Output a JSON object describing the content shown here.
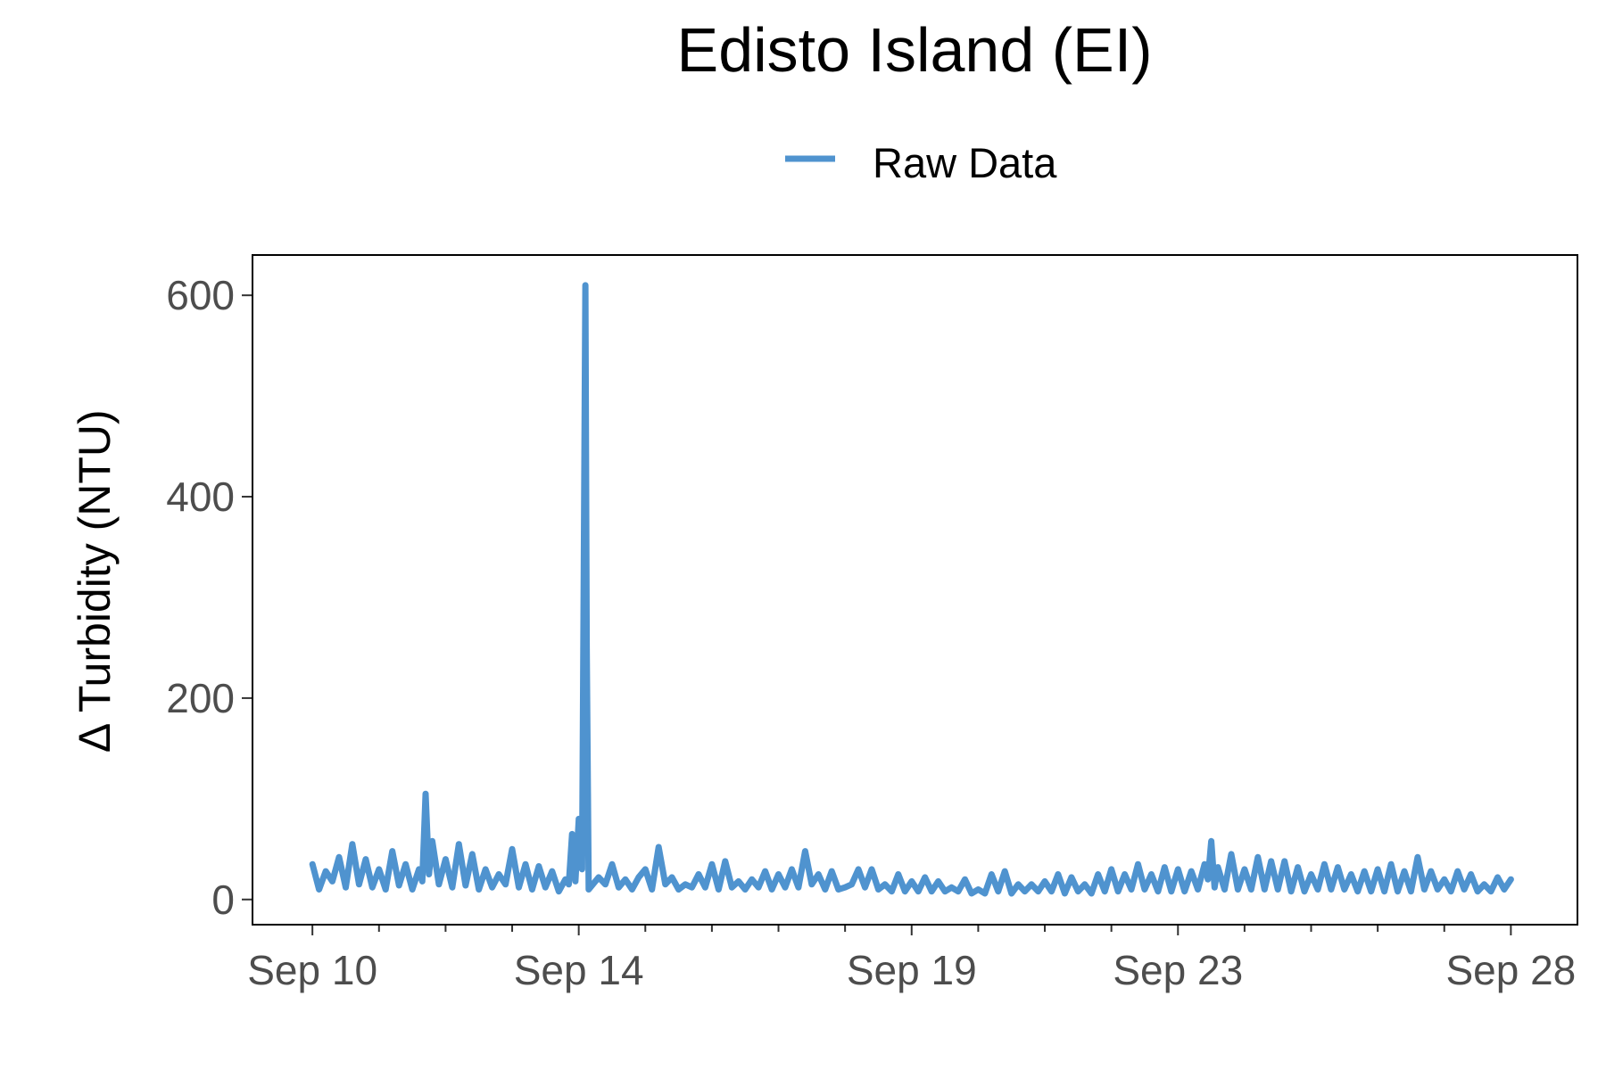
{
  "chart_data": {
    "type": "line",
    "title": "Edisto Island (EI)",
    "xlabel": "",
    "ylabel": "∆ Turbidity (NTU)",
    "legend": {
      "position": "top",
      "entries": [
        "Raw Data"
      ]
    },
    "grid": false,
    "x_range": [
      "2023-09-10",
      "2023-09-28"
    ],
    "xlim": [
      -0.9,
      19.0
    ],
    "ylim": [
      -25,
      640
    ],
    "x_major_ticks": [
      {
        "day": 0,
        "label": "Sep 10"
      },
      {
        "day": 4,
        "label": "Sep 14"
      },
      {
        "day": 9,
        "label": "Sep 19"
      },
      {
        "day": 13,
        "label": "Sep 23"
      },
      {
        "day": 18,
        "label": "Sep 28"
      }
    ],
    "x_minor_ticks": [
      1,
      2,
      3,
      5,
      6,
      7,
      8,
      10,
      11,
      12,
      14,
      15,
      16,
      17
    ],
    "y_ticks": [
      0,
      200,
      400,
      600
    ],
    "series": [
      {
        "name": "Raw Data",
        "color": "#4f93cf",
        "points": [
          [
            0.0,
            35
          ],
          [
            0.1,
            10
          ],
          [
            0.2,
            28
          ],
          [
            0.3,
            18
          ],
          [
            0.4,
            42
          ],
          [
            0.5,
            12
          ],
          [
            0.6,
            55
          ],
          [
            0.7,
            15
          ],
          [
            0.8,
            40
          ],
          [
            0.9,
            12
          ],
          [
            1.0,
            30
          ],
          [
            1.1,
            10
          ],
          [
            1.2,
            48
          ],
          [
            1.3,
            14
          ],
          [
            1.4,
            35
          ],
          [
            1.5,
            10
          ],
          [
            1.6,
            30
          ],
          [
            1.65,
            18
          ],
          [
            1.7,
            105
          ],
          [
            1.75,
            25
          ],
          [
            1.8,
            58
          ],
          [
            1.9,
            15
          ],
          [
            2.0,
            40
          ],
          [
            2.1,
            12
          ],
          [
            2.2,
            55
          ],
          [
            2.3,
            14
          ],
          [
            2.4,
            45
          ],
          [
            2.5,
            10
          ],
          [
            2.6,
            30
          ],
          [
            2.7,
            12
          ],
          [
            2.8,
            25
          ],
          [
            2.9,
            15
          ],
          [
            3.0,
            50
          ],
          [
            3.1,
            12
          ],
          [
            3.2,
            35
          ],
          [
            3.3,
            10
          ],
          [
            3.4,
            33
          ],
          [
            3.5,
            12
          ],
          [
            3.6,
            28
          ],
          [
            3.7,
            8
          ],
          [
            3.8,
            20
          ],
          [
            3.85,
            15
          ],
          [
            3.9,
            65
          ],
          [
            3.95,
            18
          ],
          [
            4.0,
            80
          ],
          [
            4.05,
            30
          ],
          [
            4.1,
            610
          ],
          [
            4.12,
            250
          ],
          [
            4.15,
            10
          ],
          [
            4.3,
            22
          ],
          [
            4.4,
            15
          ],
          [
            4.5,
            35
          ],
          [
            4.6,
            12
          ],
          [
            4.7,
            20
          ],
          [
            4.8,
            10
          ],
          [
            4.9,
            22
          ],
          [
            5.0,
            30
          ],
          [
            5.1,
            10
          ],
          [
            5.2,
            52
          ],
          [
            5.3,
            15
          ],
          [
            5.4,
            22
          ],
          [
            5.5,
            10
          ],
          [
            5.6,
            15
          ],
          [
            5.7,
            12
          ],
          [
            5.8,
            25
          ],
          [
            5.9,
            12
          ],
          [
            6.0,
            35
          ],
          [
            6.1,
            10
          ],
          [
            6.2,
            38
          ],
          [
            6.3,
            12
          ],
          [
            6.4,
            18
          ],
          [
            6.5,
            10
          ],
          [
            6.6,
            20
          ],
          [
            6.7,
            12
          ],
          [
            6.8,
            28
          ],
          [
            6.9,
            10
          ],
          [
            7.0,
            25
          ],
          [
            7.1,
            12
          ],
          [
            7.2,
            30
          ],
          [
            7.3,
            12
          ],
          [
            7.4,
            48
          ],
          [
            7.5,
            15
          ],
          [
            7.6,
            25
          ],
          [
            7.7,
            10
          ],
          [
            7.8,
            28
          ],
          [
            7.9,
            10
          ],
          [
            8.0,
            12
          ],
          [
            8.1,
            15
          ],
          [
            8.2,
            30
          ],
          [
            8.3,
            12
          ],
          [
            8.4,
            30
          ],
          [
            8.5,
            10
          ],
          [
            8.6,
            15
          ],
          [
            8.7,
            8
          ],
          [
            8.8,
            25
          ],
          [
            8.9,
            8
          ],
          [
            9.0,
            18
          ],
          [
            9.1,
            8
          ],
          [
            9.2,
            22
          ],
          [
            9.3,
            8
          ],
          [
            9.4,
            18
          ],
          [
            9.5,
            8
          ],
          [
            9.6,
            12
          ],
          [
            9.7,
            8
          ],
          [
            9.8,
            20
          ],
          [
            9.9,
            6
          ],
          [
            10.0,
            10
          ],
          [
            10.1,
            6
          ],
          [
            10.2,
            25
          ],
          [
            10.3,
            8
          ],
          [
            10.4,
            28
          ],
          [
            10.5,
            6
          ],
          [
            10.6,
            15
          ],
          [
            10.7,
            8
          ],
          [
            10.8,
            15
          ],
          [
            10.9,
            8
          ],
          [
            11.0,
            18
          ],
          [
            11.1,
            8
          ],
          [
            11.2,
            25
          ],
          [
            11.3,
            6
          ],
          [
            11.4,
            22
          ],
          [
            11.5,
            8
          ],
          [
            11.6,
            15
          ],
          [
            11.7,
            6
          ],
          [
            11.8,
            25
          ],
          [
            11.9,
            8
          ],
          [
            12.0,
            30
          ],
          [
            12.1,
            8
          ],
          [
            12.2,
            25
          ],
          [
            12.3,
            10
          ],
          [
            12.4,
            35
          ],
          [
            12.5,
            10
          ],
          [
            12.6,
            25
          ],
          [
            12.7,
            8
          ],
          [
            12.8,
            32
          ],
          [
            12.9,
            8
          ],
          [
            13.0,
            30
          ],
          [
            13.1,
            8
          ],
          [
            13.2,
            28
          ],
          [
            13.3,
            10
          ],
          [
            13.4,
            35
          ],
          [
            13.45,
            20
          ],
          [
            13.5,
            58
          ],
          [
            13.55,
            12
          ],
          [
            13.6,
            32
          ],
          [
            13.7,
            10
          ],
          [
            13.8,
            45
          ],
          [
            13.9,
            10
          ],
          [
            14.0,
            30
          ],
          [
            14.1,
            10
          ],
          [
            14.2,
            42
          ],
          [
            14.3,
            10
          ],
          [
            14.4,
            38
          ],
          [
            14.5,
            10
          ],
          [
            14.6,
            38
          ],
          [
            14.7,
            8
          ],
          [
            14.8,
            32
          ],
          [
            14.9,
            8
          ],
          [
            15.0,
            25
          ],
          [
            15.1,
            10
          ],
          [
            15.2,
            35
          ],
          [
            15.3,
            10
          ],
          [
            15.4,
            32
          ],
          [
            15.5,
            10
          ],
          [
            15.6,
            25
          ],
          [
            15.7,
            8
          ],
          [
            15.8,
            28
          ],
          [
            15.9,
            8
          ],
          [
            16.0,
            30
          ],
          [
            16.1,
            8
          ],
          [
            16.2,
            35
          ],
          [
            16.3,
            8
          ],
          [
            16.4,
            28
          ],
          [
            16.5,
            8
          ],
          [
            16.6,
            42
          ],
          [
            16.7,
            10
          ],
          [
            16.8,
            28
          ],
          [
            16.9,
            10
          ],
          [
            17.0,
            20
          ],
          [
            17.1,
            8
          ],
          [
            17.2,
            28
          ],
          [
            17.3,
            10
          ],
          [
            17.4,
            25
          ],
          [
            17.5,
            8
          ],
          [
            17.6,
            15
          ],
          [
            17.7,
            8
          ],
          [
            17.8,
            22
          ],
          [
            17.9,
            10
          ],
          [
            18.0,
            20
          ]
        ]
      }
    ]
  }
}
